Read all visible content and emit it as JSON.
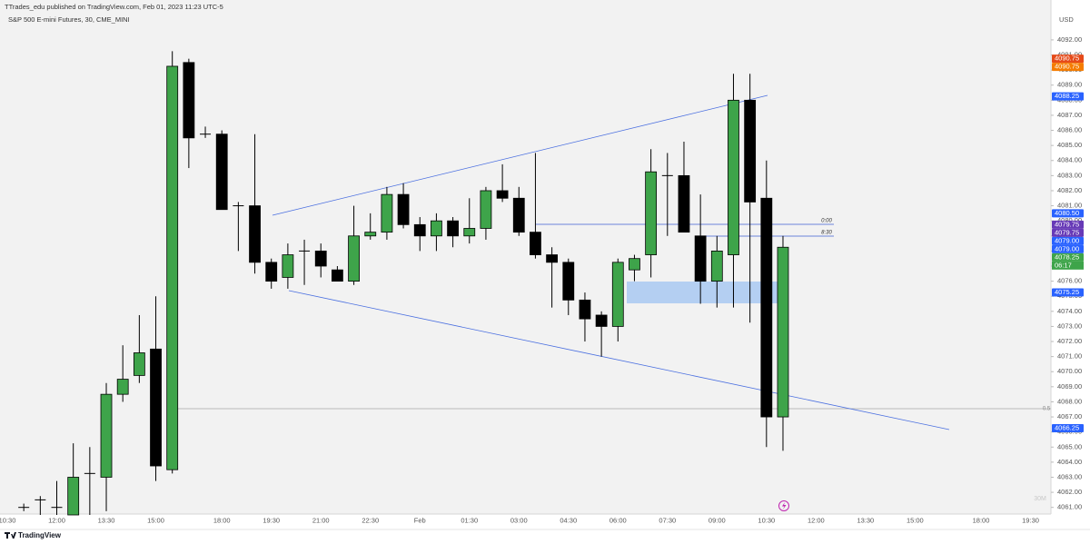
{
  "header": {
    "publisher": "TTrades_edu published on TradingView.com, Feb 01, 2023 11:23 UTC-5"
  },
  "chart_data": {
    "type": "candlestick",
    "title": "S&P 500 E-mini Futures, 30, CME_MINI",
    "currency": "USD",
    "interval_watermark": "30M",
    "categories": [
      "10:30",
      null,
      null,
      "12:00",
      null,
      null,
      "13:30",
      null,
      null,
      "15:00",
      null,
      null,
      null,
      "18:00",
      null,
      null,
      "19:30",
      null,
      null,
      "21:00",
      null,
      null,
      "22:30",
      null,
      null,
      "Feb",
      null,
      null,
      "01:30",
      null,
      null,
      "03:00",
      null,
      null,
      "04:30",
      null,
      null,
      "06:00",
      null,
      null,
      "07:30",
      null,
      null,
      "09:00",
      null,
      null,
      "10:30",
      null,
      null,
      "12:00",
      null,
      null,
      "13:30",
      null,
      null,
      "15:00",
      null,
      null,
      null,
      "18:00",
      null,
      null,
      "19:30"
    ],
    "open": [
      null,
      4061.0,
      4061.5,
      4061.0,
      4060.5,
      4063.25,
      4063.0,
      4068.5,
      4069.75,
      4071.5,
      4063.5,
      4090.5,
      4085.75,
      4085.75,
      4081.0,
      4081.0,
      4077.25,
      4076.25,
      4078.0,
      4078.0,
      4076.75,
      4076.0,
      4079.0,
      4079.25,
      4081.75,
      4079.75,
      4079.0,
      4080.0,
      4079.0,
      4079.5,
      4082.0,
      4081.5,
      4079.25,
      4077.75,
      4077.25,
      4074.75,
      4073.75,
      4073.0,
      4076.75,
      4077.75,
      4083.0,
      4083.0,
      4079.0,
      4076.0,
      4077.75,
      4088.0,
      4081.5,
      4067.0,
      null,
      null,
      null,
      null,
      null,
      null,
      null,
      null,
      null,
      null,
      null,
      null,
      null,
      null,
      null
    ],
    "high": [
      null,
      4061.25,
      4061.75,
      4062.75,
      4065.25,
      4065.0,
      4069.25,
      4071.75,
      4073.75,
      4075.0,
      4091.25,
      4090.75,
      4086.25,
      4086.0,
      4081.25,
      4085.75,
      4077.5,
      4078.5,
      4078.75,
      4078.5,
      4077.0,
      4081.0,
      4080.5,
      4082.25,
      4082.5,
      4080.25,
      4080.5,
      4080.25,
      4081.5,
      4082.25,
      4083.75,
      4082.25,
      4084.5,
      4078.25,
      4077.5,
      4075.25,
      4074.0,
      4077.5,
      4077.75,
      4084.75,
      4084.5,
      4085.25,
      4081.75,
      4079.0,
      4089.75,
      4089.75,
      4084.0,
      4079.0,
      null,
      null,
      null,
      null,
      null,
      null,
      null,
      null,
      null,
      null,
      null,
      null,
      null,
      null,
      null
    ],
    "low": [
      null,
      4060.75,
      4060.5,
      4060.5,
      4060.5,
      4060.5,
      4060.75,
      4068.0,
      4069.25,
      4062.75,
      4063.25,
      4083.5,
      4085.5,
      4080.75,
      4078.0,
      4076.5,
      4075.5,
      4075.5,
      4075.75,
      4076.25,
      4076.0,
      4075.75,
      4078.75,
      4078.75,
      4079.5,
      4078.0,
      4078.0,
      4078.25,
      4078.5,
      4078.75,
      4081.25,
      4079.0,
      4077.5,
      4074.25,
      4073.75,
      4072.0,
      4071.0,
      4072.0,
      4076.0,
      4076.25,
      4079.0,
      4079.25,
      4074.5,
      4074.25,
      4074.25,
      4073.25,
      4065.0,
      4064.75,
      null,
      null,
      null,
      null,
      null,
      null,
      null,
      null,
      null,
      null,
      null,
      null,
      null,
      null,
      null
    ],
    "close": [
      null,
      4061.0,
      4061.5,
      4061.0,
      4063.0,
      4063.25,
      4068.5,
      4069.5,
      4071.25,
      4063.75,
      4090.25,
      4085.5,
      4085.75,
      4080.75,
      4081.0,
      4077.25,
      4076.0,
      4077.75,
      4078.0,
      4077.0,
      4076.0,
      4079.0,
      4079.25,
      4081.75,
      4079.75,
      4079.0,
      4080.0,
      4079.0,
      4079.5,
      4082.0,
      4081.5,
      4079.25,
      4077.75,
      4077.25,
      4074.75,
      4073.5,
      4073.0,
      4077.25,
      4077.5,
      4083.25,
      4083.0,
      4079.25,
      4076.0,
      4078.0,
      4088.0,
      4081.25,
      4067.0,
      4078.25,
      null,
      null,
      null,
      null,
      null,
      null,
      null,
      null,
      null,
      null,
      null,
      null,
      null,
      null,
      null
    ],
    "up_color": "#3ea44a",
    "down_color": "#000000",
    "ylim": [
      4060.5,
      4093.5
    ],
    "yticks": [
      {
        "value": 4061,
        "label": "4061.00"
      },
      {
        "value": 4062,
        "label": "4062.00"
      },
      {
        "value": 4063,
        "label": "4063.00"
      },
      {
        "value": 4064,
        "label": "4064.00"
      },
      {
        "value": 4065,
        "label": "4065.00"
      },
      {
        "value": 4066,
        "label": "4066.00"
      },
      {
        "value": 4067,
        "label": "4067.00"
      },
      {
        "value": 4068,
        "label": "4068.00"
      },
      {
        "value": 4069,
        "label": "4069.00"
      },
      {
        "value": 4070,
        "label": "4070.00"
      },
      {
        "value": 4071,
        "label": "4071.00"
      },
      {
        "value": 4072,
        "label": "4072.00"
      },
      {
        "value": 4073,
        "label": "4073.00"
      },
      {
        "value": 4074,
        "label": "4074.00"
      },
      {
        "value": 4075,
        "label": "4075.00"
      },
      {
        "value": 4076,
        "label": "4076.00"
      },
      {
        "value": 4077,
        "label": "4077.00"
      },
      {
        "value": 4078,
        "label": "4078.00"
      },
      {
        "value": 4079,
        "label": "4079.00"
      },
      {
        "value": 4080,
        "label": "4080.00"
      },
      {
        "value": 4081,
        "label": "4081.00"
      },
      {
        "value": 4082,
        "label": "4082.00"
      },
      {
        "value": 4083,
        "label": "4083.00"
      },
      {
        "value": 4084,
        "label": "4084.00"
      },
      {
        "value": 4085,
        "label": "4085.00"
      },
      {
        "value": 4086,
        "label": "4086.00"
      },
      {
        "value": 4087,
        "label": "4087.00"
      },
      {
        "value": 4088,
        "label": "4088.00"
      },
      {
        "value": 4089,
        "label": "4089.00"
      },
      {
        "value": 4090,
        "label": "4090.00"
      },
      {
        "value": 4091,
        "label": "4091.00"
      },
      {
        "value": 4092,
        "label": "4092.00"
      }
    ],
    "grid": false,
    "price_labels": [
      {
        "value": 4090.75,
        "label": "4090.75",
        "color": "#e64a19"
      },
      {
        "value": 4090.75,
        "label": "4090.75",
        "color": "#f57c00"
      },
      {
        "value": 4088.25,
        "label": "4088.25",
        "color": "#2962ff"
      },
      {
        "value": 4080.5,
        "label": "4080.50",
        "color": "#2962ff"
      },
      {
        "value": 4079.75,
        "label": "4079.75",
        "color": "#673ab7"
      },
      {
        "value": 4079.75,
        "label": "4079.75",
        "color": "#673ab7"
      },
      {
        "value": 4079,
        "label": "4079.00",
        "color": "#2962ff"
      },
      {
        "value": 4079,
        "label": "4079.00",
        "color": "#2962ff"
      },
      {
        "value": 4078.25,
        "label": "4078.25",
        "color": "#3ea44a"
      },
      {
        "value": 4075.25,
        "label": "4075.25",
        "color": "#2962ff"
      },
      {
        "value": 4066.25,
        "label": "4066.25",
        "color": "#2962ff"
      }
    ],
    "countdown": "06:17",
    "annotations": [
      "0:00",
      "8:30",
      "0.5"
    ]
  },
  "footer": {
    "brand": "TradingView"
  }
}
